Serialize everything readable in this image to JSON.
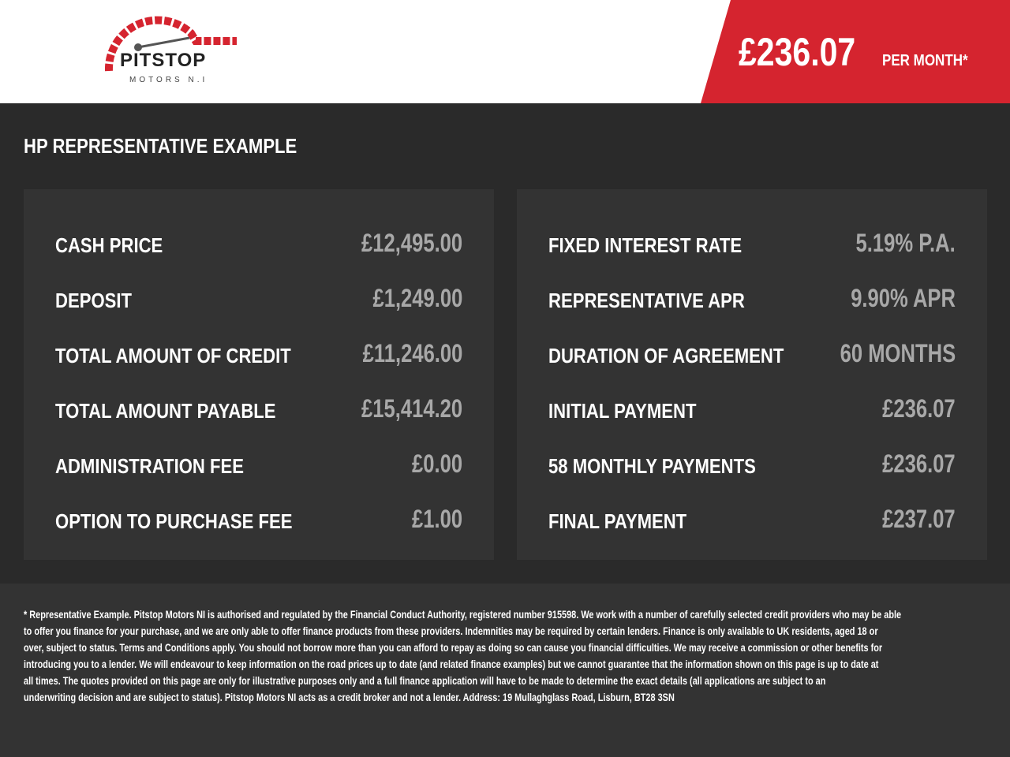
{
  "header": {
    "logo_text": "PITSTOP",
    "logo_subtext": "MOTORS N.I",
    "price": "£236.07",
    "price_suffix": "PER MONTH*",
    "accent": "#d5242f"
  },
  "title": "HP REPRESENTATIVE EXAMPLE",
  "left": [
    {
      "label": "CASH PRICE",
      "value": "£12,495.00"
    },
    {
      "label": "DEPOSIT",
      "value": "£1,249.00"
    },
    {
      "label": "TOTAL AMOUNT OF CREDIT",
      "value": "£11,246.00"
    },
    {
      "label": "TOTAL AMOUNT PAYABLE",
      "value": "£15,414.20"
    },
    {
      "label": "ADMINISTRATION FEE",
      "value": "£0.00"
    },
    {
      "label": "OPTION TO PURCHASE FEE",
      "value": "£1.00"
    }
  ],
  "right": [
    {
      "label": "FIXED INTEREST RATE",
      "value": "5.19% P.A."
    },
    {
      "label": "REPRESENTATIVE APR",
      "value": "9.90% APR"
    },
    {
      "label": "DURATION OF AGREEMENT",
      "value": "60 MONTHS"
    },
    {
      "label": "INITIAL PAYMENT",
      "value": "£236.07"
    },
    {
      "label": "58 MONTHLY PAYMENTS",
      "value": "£236.07"
    },
    {
      "label": "FINAL PAYMENT",
      "value": "£237.07"
    }
  ],
  "disclaimer": [
    "* Representative Example. Pitstop Motors NI is authorised and regulated by the Financial Conduct Authority, registered number 915598. We work with a number of carefully selected credit providers who may be able",
    "to offer you finance for your purchase, and we are only able to offer finance products from these providers. Indemnities may be required by certain lenders. Finance is only available to UK residents, aged 18 or",
    "over, subject to status. Terms and Conditions apply. You should not borrow more than you can afford to repay as doing so can cause you financial difficulties. We may receive a commission or other benefits for",
    "introducing you to a lender. We will endeavour to keep information on the road prices up to date (and related finance examples) but we cannot guarantee that the information shown on this page is up to date at",
    "all times. The quotes provided on this page are only for illustrative purposes only and a full finance application will have to be made to determine the exact details (all applications are subject to an",
    "underwriting decision and are subject to status). Pitstop Motors NI acts as a credit broker and not a lender. Address: 19 Mullaghglass Road, Lisburn, BT28 3SN"
  ]
}
